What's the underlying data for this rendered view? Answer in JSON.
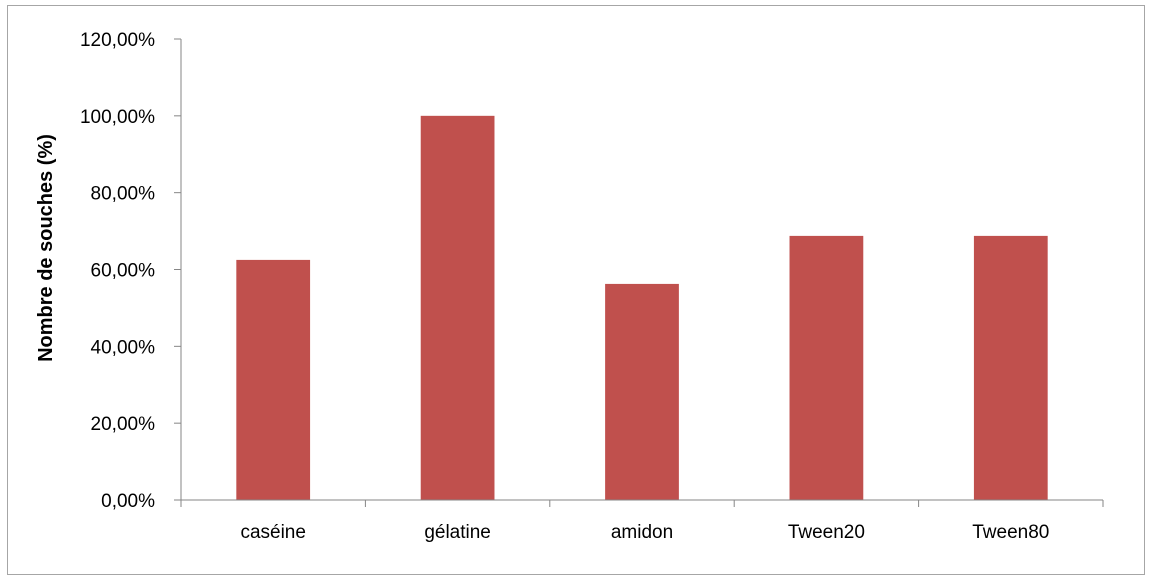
{
  "chart_data": {
    "type": "bar",
    "title": "",
    "xlabel": "",
    "ylabel": "Nombre de souches (%)",
    "categories": [
      "caséine",
      "gélatine",
      "amidon",
      "Tween20",
      "Tween80"
    ],
    "values": [
      62.5,
      100.0,
      56.25,
      68.75,
      68.75
    ],
    "ylim": [
      0,
      120
    ],
    "yticks": [
      {
        "value": 0,
        "label": "0,00%"
      },
      {
        "value": 20,
        "label": "20,00%"
      },
      {
        "value": 40,
        "label": "40,00%"
      },
      {
        "value": 60,
        "label": "60,00%"
      },
      {
        "value": 80,
        "label": "80,00%"
      },
      {
        "value": 100,
        "label": "100,00%"
      },
      {
        "value": 120,
        "label": "120,00%"
      }
    ],
    "bar_color": "#c0504d",
    "axis_color": "#868686",
    "grid": false,
    "legend": "none"
  }
}
